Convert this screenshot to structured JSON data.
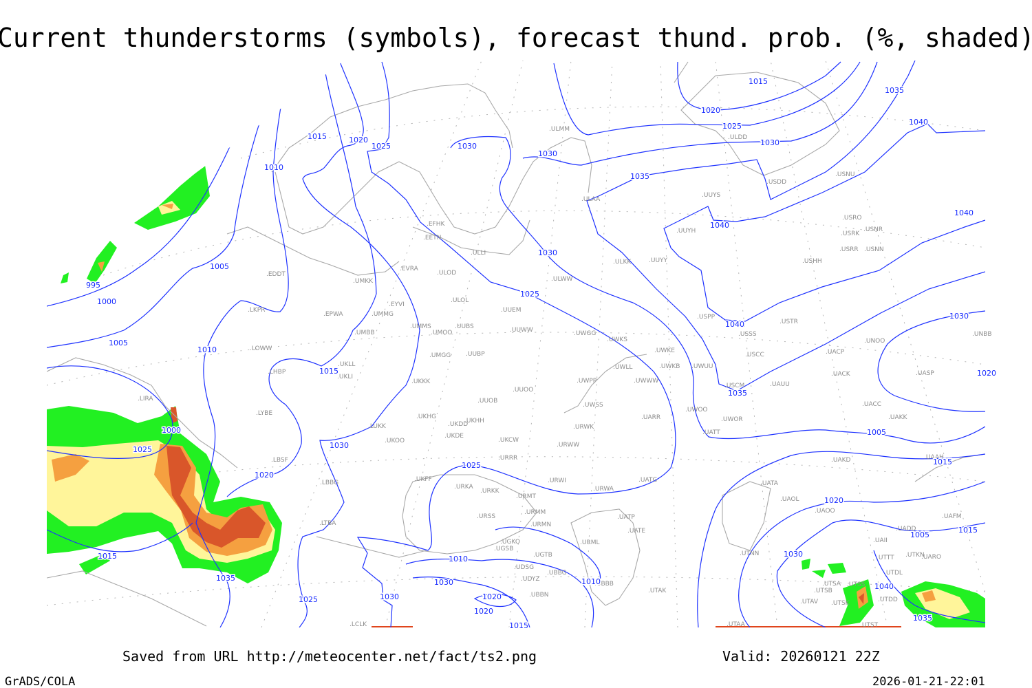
{
  "title": "Current thunderstorms (symbols), forecast thund. prob. (%, shaded)",
  "footer": {
    "source": "Saved from URL http://meteocenter.net/fact/ts2.png",
    "valid": "Valid: 20260121 22Z",
    "software": "GrADS/COLA",
    "timestamp": "2026-01-21-22:01"
  },
  "colors": {
    "isobar": "#1e32ff",
    "coastline": "#a8a8a8",
    "station_label": "#8c8c8c",
    "prob_low": "#22f022",
    "prob_mid": "#fff59a",
    "prob_high": "#f5a040",
    "prob_max": "#d9562a"
  },
  "isobar_labels": [
    "1015",
    "1020",
    "1035",
    "1025",
    "1040",
    "1030",
    "1015",
    "1020",
    "1025",
    "1030",
    "1030",
    "1010",
    "1035",
    "1040",
    "1040",
    "1005",
    "995",
    "1030",
    "1000",
    "1025",
    "1040",
    "1005",
    "1030",
    "1010",
    "1015",
    "1035",
    "1020",
    "1030",
    "1005",
    "1000",
    "1025",
    "1025",
    "1015",
    "1020",
    "1020",
    "1015",
    "1005",
    "1015",
    "1030",
    "1010",
    "1035",
    "1030",
    "1010",
    "1040",
    "1020",
    "1025",
    "1030",
    "1020",
    "1035",
    "1015"
  ],
  "stations": [
    "ULMM",
    "ULDD",
    "USDD",
    "USNU",
    "UUYS",
    "ULAA",
    "USRO",
    "USRK",
    "USNR",
    "UUYH",
    "USRR",
    "USNN",
    "USHH",
    "ULKK",
    "UUYY",
    "ULWW",
    "USPP",
    "USTR",
    "USSS",
    "UNOO",
    "UNBB",
    "EFHK",
    "EETN",
    "ULLI",
    "EVRA",
    "ULOD",
    "UMKK",
    "EDDT",
    "ULOL",
    "EYVI",
    "UUEM",
    "LKPR",
    "EPWA",
    "UMMG",
    "UMMS",
    "UMOO",
    "UUBS",
    "UUWW",
    "UMBB",
    "UWGG",
    "UWKS",
    "UWKE",
    "UWKB",
    "UWUU",
    "USCC",
    "UACP",
    "LOWW",
    "UKLL",
    "UKLI",
    "LHBP",
    "UMGG",
    "UUBP",
    "UKKK",
    "UWLL",
    "UWPP",
    "UWWW",
    "USCM",
    "UAUU",
    "UACK",
    "UASP",
    "UUOO",
    "UUOB",
    "UWSS",
    "UACC",
    "LIRA",
    "LYBE",
    "UKHG",
    "UKDD",
    "UKHH",
    "UWOO",
    "UWOR",
    "UARR",
    "UAKK",
    "LUKK",
    "URWK",
    "UKOO",
    "UKDE",
    "UKCW",
    "URWW",
    "UATT",
    "LBSF",
    "URRR",
    "UAKD",
    "UAAH",
    "UKFF",
    "LBBG",
    "URKA",
    "URKK",
    "URWI",
    "UATG",
    "URWA",
    "UATA",
    "URMT",
    "UAOL",
    "UAOO",
    "URSS",
    "URMM",
    "URMN",
    "UATE",
    "UATP",
    "UAFM",
    "UADD",
    "UGKO",
    "UGSB",
    "URML",
    "UAII",
    "UGTB",
    "UTNN",
    "UTTT",
    "UTKN",
    "UARO",
    "UDSG",
    "UBBG",
    "UTDL",
    "UDYZ",
    "UBBB",
    "UTAK",
    "UTSA",
    "UTSS",
    "UTSB",
    "UBBN",
    "UTDD",
    "UTAV",
    "UTSK",
    "LTBA",
    "LCLK",
    "UTAA",
    "UTST"
  ]
}
